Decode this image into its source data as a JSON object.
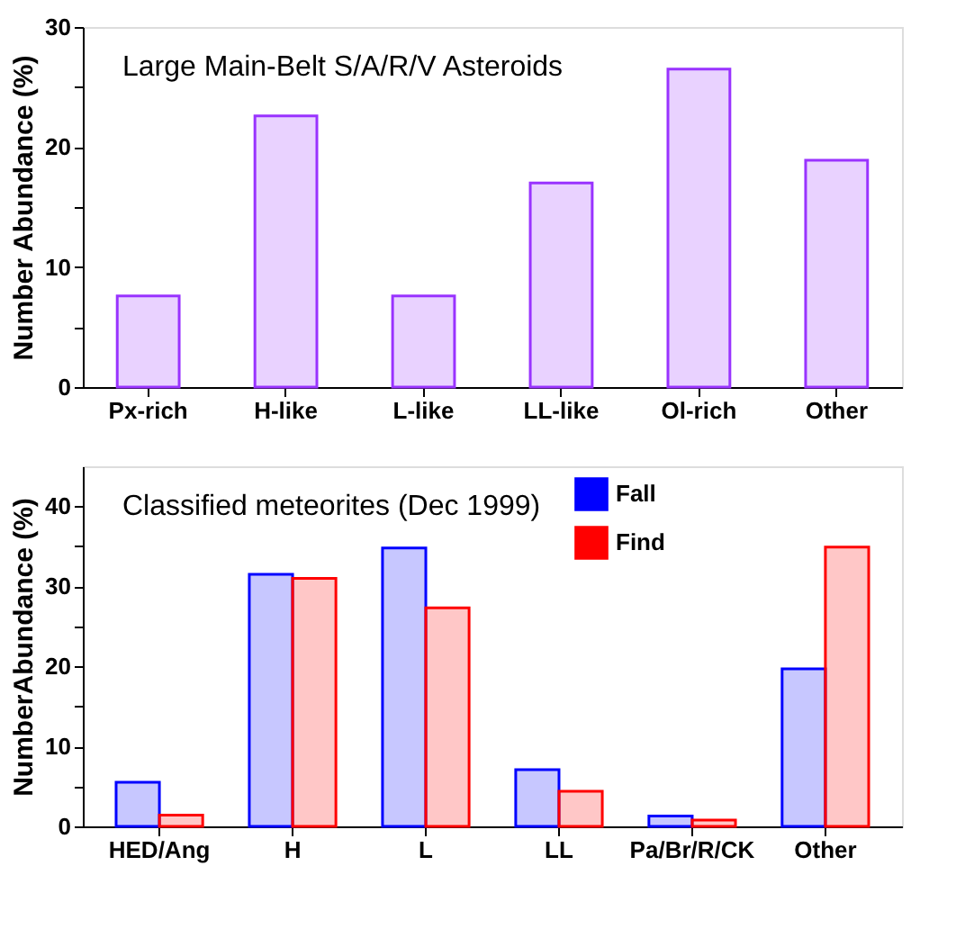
{
  "chart_data": [
    {
      "type": "bar",
      "title": "Large Main-Belt S/A/R/V Asteroids",
      "ylabel": "Number Abundance (%)",
      "categories": [
        "Px-rich",
        "H-like",
        "L-like",
        "LL-like",
        "Ol-rich",
        "Other"
      ],
      "values": [
        7.6,
        22.6,
        7.6,
        17.0,
        26.5,
        18.9
      ],
      "color": "#9933ff",
      "ylim": [
        0,
        30
      ],
      "yticks": [
        0,
        {
          "value": 5,
          "label": null
        },
        10,
        {
          "value": 15,
          "label": null
        },
        20,
        {
          "value": 25,
          "label": null
        },
        30
      ],
      "grid": false
    },
    {
      "type": "bar",
      "title": "Classified meteorites (Dec 1999)",
      "ylabel": "NumberAbundance (%)",
      "categories": [
        "HED/Ang",
        "H",
        "L",
        "LL",
        "Pa/Br/R/CK",
        "Other"
      ],
      "series": [
        {
          "name": "Fall",
          "color": "#0000ff",
          "values": [
            5.5,
            31.5,
            34.8,
            7.1,
            1.3,
            19.7
          ]
        },
        {
          "name": "Find",
          "color": "#ff0000",
          "values": [
            1.4,
            31.0,
            27.3,
            4.4,
            0.8,
            34.9
          ]
        }
      ],
      "ylim": [
        0,
        45
      ],
      "yticks": [
        0,
        {
          "value": 5,
          "label": null
        },
        10,
        {
          "value": 15,
          "label": null
        },
        20,
        {
          "value": 25,
          "label": null
        },
        30,
        {
          "value": 35,
          "label": null
        },
        40
      ],
      "grid": false,
      "legend": "top right"
    }
  ]
}
